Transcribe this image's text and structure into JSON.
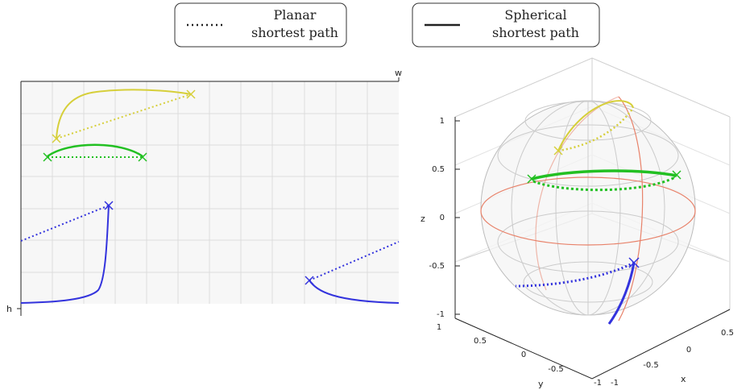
{
  "legend": {
    "planar": {
      "line1": "Planar",
      "line2": "shortest path",
      "style": "dotted"
    },
    "spherical": {
      "line1": "Spherical",
      "line2": "shortest path",
      "style": "solid"
    }
  },
  "planar_view": {
    "corner_labels": {
      "w": "w",
      "h": "h"
    }
  },
  "sphere_view": {
    "axis_labels": {
      "x": "x",
      "y": "y",
      "z": "z"
    },
    "z_ticks": [
      "1",
      "0.5",
      "0",
      "-0.5",
      "-1"
    ],
    "y_ticks": [
      "1",
      "0.5",
      "0",
      "-0.5",
      "-1"
    ],
    "x_ticks": [
      "-1",
      "-0.5",
      "0",
      "0.5"
    ]
  },
  "colors": {
    "yellow": "#d6cf3a",
    "green": "#22c022",
    "blue": "#3333dd",
    "equator": "#e8826a",
    "grid": "#d8d8d8",
    "frame": "#222222"
  },
  "paths": [
    {
      "color": "yellow",
      "name": "yellow-path"
    },
    {
      "color": "green",
      "name": "green-path"
    },
    {
      "color": "blue",
      "name": "blue-path"
    }
  ]
}
